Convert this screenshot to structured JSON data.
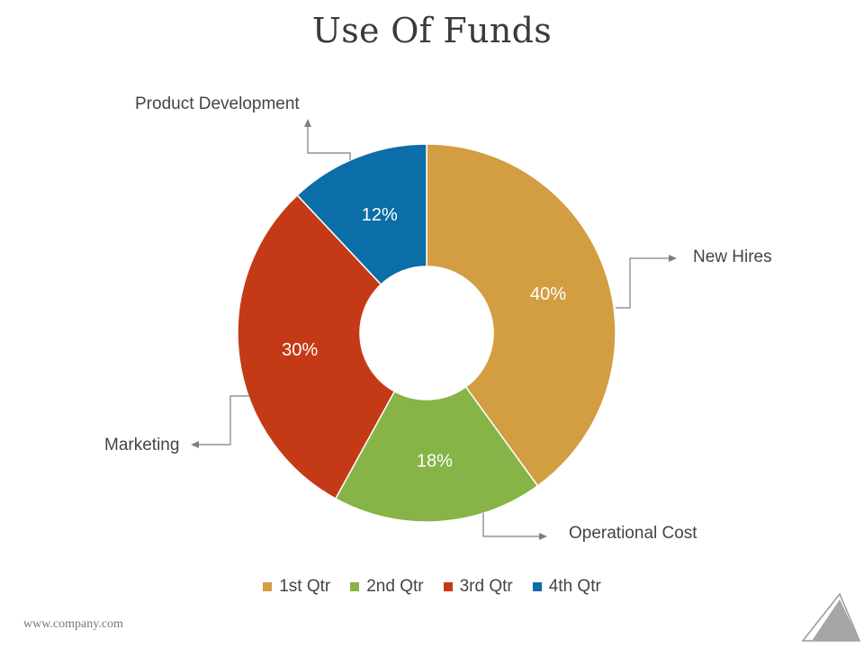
{
  "title": "Use Of Funds",
  "footer_url": "www.company.com",
  "chart_data": {
    "type": "pie",
    "donut": true,
    "slices": [
      {
        "label": "New Hires",
        "value": 40,
        "data_label": "40%",
        "color": "#d39e42"
      },
      {
        "label": "Operational Cost",
        "value": 18,
        "data_label": "18%",
        "color": "#86b446"
      },
      {
        "label": "Marketing",
        "value": 30,
        "data_label": "30%",
        "color": "#c43a16"
      },
      {
        "label": "Product Development",
        "value": 12,
        "data_label": "12%",
        "color": "#0b6ea8"
      }
    ],
    "legend": {
      "position": "bottom",
      "entries": [
        {
          "label": "1st Qtr",
          "color": "#d39e42"
        },
        {
          "label": "2nd Qtr",
          "color": "#86b446"
        },
        {
          "label": "3rd Qtr",
          "color": "#c43a16"
        },
        {
          "label": "4th Qtr",
          "color": "#0b6ea8"
        }
      ]
    }
  }
}
